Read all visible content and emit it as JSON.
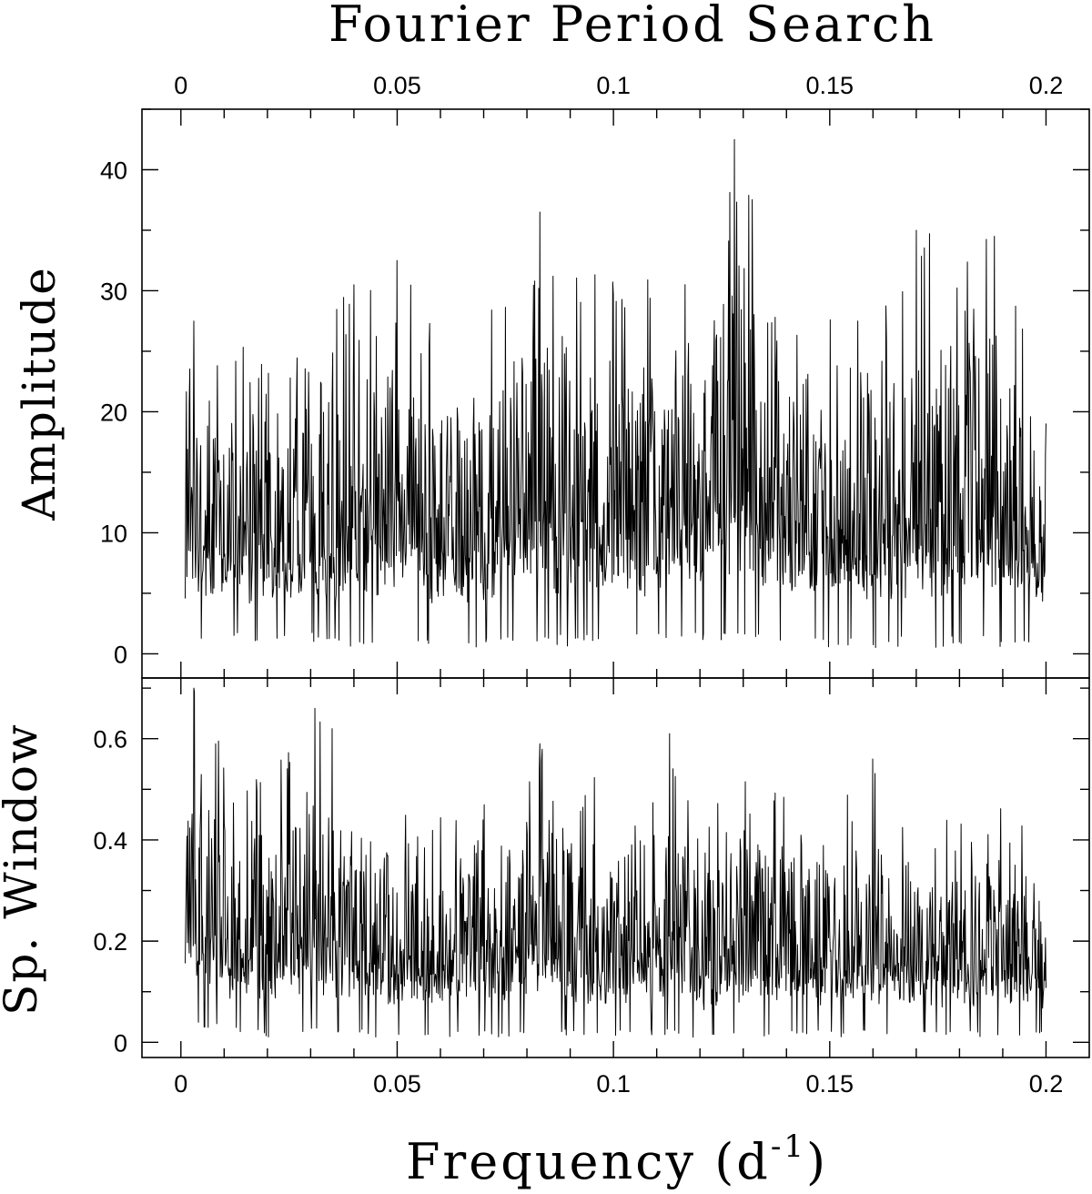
{
  "chart_data": [
    {
      "type": "line",
      "title": "Fourier Period Search",
      "xlabel": "",
      "ylabel": "Amplitude",
      "xlim": [
        -0.009,
        0.21
      ],
      "ylim": [
        -2,
        45
      ],
      "xticks": [
        0,
        0.05,
        0.1,
        0.15,
        0.2
      ],
      "xtick_labels": [
        "0",
        "0.05",
        "0.1",
        "0.15",
        "0.2"
      ],
      "yticks": [
        0,
        10,
        20,
        30,
        40
      ],
      "ytick_labels": [
        "0",
        "10",
        "20",
        "30",
        "40"
      ],
      "grid": false,
      "series": [
        {
          "x_range": [
            0.001,
            0.2
          ],
          "envelope": [
            {
              "x": 0.001,
              "low": 2,
              "high": 23
            },
            {
              "x": 0.003,
              "low": 1,
              "high": 27.5
            },
            {
              "x": 0.02,
              "low": 1,
              "high": 25
            },
            {
              "x": 0.03,
              "low": 1,
              "high": 28
            },
            {
              "x": 0.04,
              "low": 0.5,
              "high": 30
            },
            {
              "x": 0.05,
              "low": 1,
              "high": 32.5
            },
            {
              "x": 0.06,
              "low": 0.5,
              "high": 27
            },
            {
              "x": 0.07,
              "low": 0.5,
              "high": 28
            },
            {
              "x": 0.083,
              "low": 1,
              "high": 36.5
            },
            {
              "x": 0.09,
              "low": 0.5,
              "high": 33.5
            },
            {
              "x": 0.1,
              "low": 1,
              "high": 32
            },
            {
              "x": 0.11,
              "low": 1,
              "high": 32
            },
            {
              "x": 0.12,
              "low": 1,
              "high": 34
            },
            {
              "x": 0.128,
              "low": 1,
              "high": 42.5
            },
            {
              "x": 0.14,
              "low": 0.5,
              "high": 33.5
            },
            {
              "x": 0.15,
              "low": 0.5,
              "high": 28
            },
            {
              "x": 0.16,
              "low": 0.5,
              "high": 30
            },
            {
              "x": 0.17,
              "low": 0.5,
              "high": 35
            },
            {
              "x": 0.188,
              "low": 0.5,
              "high": 34.5
            },
            {
              "x": 0.2,
              "low": 1,
              "high": 22
            }
          ],
          "peaks": [
            {
              "x": 0.128,
              "y": 42.5
            },
            {
              "x": 0.083,
              "y": 36.5
            },
            {
              "x": 0.17,
              "y": 35
            },
            {
              "x": 0.188,
              "y": 34.5
            },
            {
              "x": 0.05,
              "y": 32.5
            },
            {
              "x": 0.04,
              "y": 30.5
            },
            {
              "x": 0.003,
              "y": 27.5
            }
          ]
        }
      ]
    },
    {
      "type": "line",
      "xlabel": "Frequency (d",
      "xlabel_superscript": "-1",
      "xlabel_suffix": ")",
      "ylabel": "Sp. Window",
      "xlim": [
        -0.009,
        0.21
      ],
      "ylim": [
        -0.03,
        0.72
      ],
      "xticks": [
        0,
        0.05,
        0.1,
        0.15,
        0.2
      ],
      "xtick_labels": [
        "0",
        "0.05",
        "0.1",
        "0.15",
        "0.2"
      ],
      "yticks": [
        0,
        0.2,
        0.4,
        0.6
      ],
      "ytick_labels": [
        "0",
        "0.2",
        "0.4",
        "0.6"
      ],
      "grid": false,
      "series": [
        {
          "x_range": [
            0.001,
            0.2
          ],
          "envelope": [
            {
              "x": 0.001,
              "low": 0.05,
              "high": 0.5
            },
            {
              "x": 0.003,
              "low": 0.03,
              "high": 0.7
            },
            {
              "x": 0.01,
              "low": 0.02,
              "high": 0.58
            },
            {
              "x": 0.02,
              "low": 0.01,
              "high": 0.52
            },
            {
              "x": 0.031,
              "low": 0.01,
              "high": 0.66
            },
            {
              "x": 0.04,
              "low": 0.01,
              "high": 0.58
            },
            {
              "x": 0.05,
              "low": 0.01,
              "high": 0.48
            },
            {
              "x": 0.06,
              "low": 0.01,
              "high": 0.45
            },
            {
              "x": 0.07,
              "low": 0.01,
              "high": 0.5
            },
            {
              "x": 0.083,
              "low": 0.01,
              "high": 0.59
            },
            {
              "x": 0.1,
              "low": 0.01,
              "high": 0.5
            },
            {
              "x": 0.113,
              "low": 0.01,
              "high": 0.61
            },
            {
              "x": 0.12,
              "low": 0.01,
              "high": 0.45
            },
            {
              "x": 0.13,
              "low": 0.01,
              "high": 0.55
            },
            {
              "x": 0.14,
              "low": 0.01,
              "high": 0.5
            },
            {
              "x": 0.15,
              "low": 0.01,
              "high": 0.48
            },
            {
              "x": 0.16,
              "low": 0.01,
              "high": 0.55
            },
            {
              "x": 0.17,
              "low": 0.01,
              "high": 0.45
            },
            {
              "x": 0.18,
              "low": 0.01,
              "high": 0.48
            },
            {
              "x": 0.2,
              "low": 0.01,
              "high": 0.45
            }
          ],
          "peaks": [
            {
              "x": 0.003,
              "y": 0.7
            },
            {
              "x": 0.031,
              "y": 0.66
            },
            {
              "x": 0.035,
              "y": 0.62
            },
            {
              "x": 0.113,
              "y": 0.61
            },
            {
              "x": 0.083,
              "y": 0.59
            },
            {
              "x": 0.008,
              "y": 0.59
            },
            {
              "x": 0.16,
              "y": 0.56
            }
          ]
        }
      ]
    }
  ]
}
